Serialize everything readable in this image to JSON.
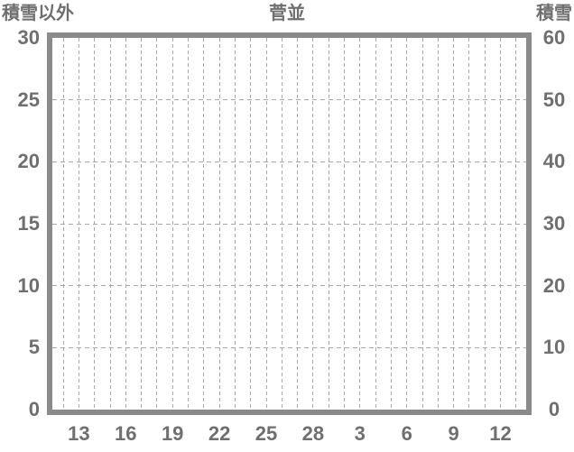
{
  "page": {
    "background": "#ffffff"
  },
  "chart_data": {
    "type": "line",
    "title": "菅並",
    "series": [],
    "y_axis_left": {
      "title": "積雪以外",
      "min": 0,
      "max": 30,
      "tick_step": 5,
      "ticks": [
        "30",
        "25",
        "20",
        "15",
        "10",
        "5",
        "0"
      ]
    },
    "y_axis_right": {
      "title": "積雪",
      "min": 0,
      "max": 60,
      "tick_step": 10,
      "ticks": [
        "60",
        "50",
        "40",
        "30",
        "20",
        "10",
        "0"
      ]
    },
    "x_axis": {
      "tick_labels": [
        "13",
        "16",
        "19",
        "22",
        "25",
        "28",
        "3",
        "6",
        "9",
        "12"
      ],
      "label_gridline_indices": [
        1,
        4,
        7,
        10,
        13,
        16,
        19,
        22,
        25,
        28
      ],
      "gridline_count": 30
    },
    "grid": {
      "vertical": "dashed",
      "horizontal": "dashed",
      "legend": "none"
    },
    "colors": {
      "text": "#6f6f6f",
      "frame": "#8a8a8a",
      "gridline": "#a9a9a9",
      "background": "#ffffff"
    }
  }
}
